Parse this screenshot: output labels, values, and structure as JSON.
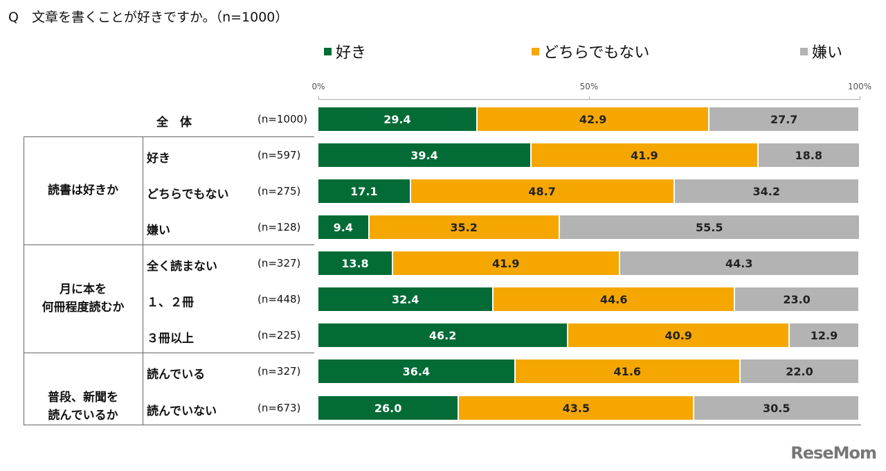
{
  "title": "Q　文章を書くことが好きですか。（n=1000）",
  "logo": "ReseMom",
  "chart_data": {
    "type": "bar",
    "stacked": true,
    "orientation": "horizontal",
    "xlim": [
      0,
      100
    ],
    "ticks": [
      "0%",
      "50%",
      "100%"
    ],
    "legend_position": "top",
    "series": [
      {
        "name": "好き",
        "color": "#036b35"
      },
      {
        "name": "どちらでもない",
        "color": "#f5a700"
      },
      {
        "name": "嫌い",
        "color": "#b3b3b3"
      }
    ],
    "groups": [
      {
        "label": "",
        "rows": [
          0
        ]
      },
      {
        "label": "読書は好きか",
        "rows": [
          1,
          2,
          3
        ]
      },
      {
        "label": "月に本を\n何冊程度読むか",
        "rows": [
          4,
          5,
          6
        ]
      },
      {
        "label": "普段、新聞を\n読んでいるか",
        "rows": [
          7,
          8
        ]
      }
    ],
    "rows": [
      {
        "label": "全　体",
        "n": "(n=1000)",
        "values": [
          29.4,
          42.9,
          27.7
        ]
      },
      {
        "label": "好き",
        "n": "(n=597)",
        "values": [
          39.4,
          41.9,
          18.8
        ]
      },
      {
        "label": "どちらでもない",
        "n": "(n=275)",
        "values": [
          17.1,
          48.7,
          34.2
        ]
      },
      {
        "label": "嫌い",
        "n": "(n=128)",
        "values": [
          9.4,
          35.2,
          55.5
        ]
      },
      {
        "label": "全く読まない",
        "n": "(n=327)",
        "values": [
          13.8,
          41.9,
          44.3
        ]
      },
      {
        "label": "１、２冊",
        "n": "(n=448)",
        "values": [
          32.4,
          44.6,
          23.0
        ]
      },
      {
        "label": "３冊以上",
        "n": "(n=225)",
        "values": [
          46.2,
          40.9,
          12.9
        ]
      },
      {
        "label": "読んでいる",
        "n": "(n=327)",
        "values": [
          36.4,
          41.6,
          22.0
        ]
      },
      {
        "label": "読んでいない",
        "n": "(n=673)",
        "values": [
          26.0,
          43.5,
          30.5
        ]
      }
    ]
  }
}
